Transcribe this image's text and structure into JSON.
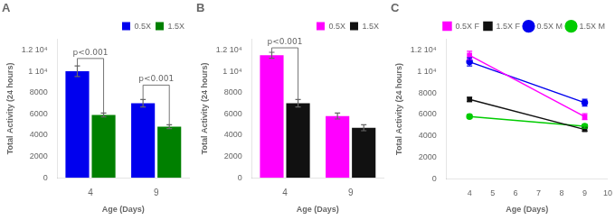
{
  "chart_data": [
    {
      "type": "bar",
      "title": "A",
      "xlabel": "Age (Days)",
      "ylabel": "Total Activity (24 hours)",
      "categories": [
        "4",
        "9"
      ],
      "series": [
        {
          "name": "0.5X",
          "color": "#0000EE",
          "values": [
            10000,
            7000
          ],
          "err": [
            500,
            350
          ]
        },
        {
          "name": "1.5X",
          "color": "#008000",
          "values": [
            5900,
            4800
          ],
          "err": [
            180,
            180
          ]
        }
      ],
      "ylim": [
        0,
        13000
      ],
      "yticks": [
        0,
        2000,
        4000,
        6000,
        8000,
        {
          "value": 10000,
          "label": "1 10⁴"
        },
        {
          "value": 12000,
          "label": "1.2 10⁴"
        }
      ],
      "annotations": [
        {
          "text": "p<0.001",
          "category": "4",
          "y": 11200
        },
        {
          "text": "p<0.001",
          "category": "9",
          "y": 8700
        }
      ],
      "legend": "upper right",
      "grid": false
    },
    {
      "type": "bar",
      "title": "B",
      "xlabel": "Age (Days)",
      "ylabel": "Total Activity (24 hours)",
      "categories": [
        "4",
        "9"
      ],
      "series": [
        {
          "name": "0.5X",
          "color": "#FF00FF",
          "values": [
            11500,
            5800
          ],
          "err": [
            280,
            280
          ]
        },
        {
          "name": "1.5X",
          "color": "#111111",
          "values": [
            7000,
            4700
          ],
          "err": [
            350,
            280
          ]
        }
      ],
      "ylim": [
        0,
        13000
      ],
      "yticks": [
        0,
        2000,
        4000,
        6000,
        8000,
        {
          "value": 10000,
          "label": "1 10⁴"
        },
        {
          "value": 12000,
          "label": "1.2 10⁴"
        }
      ],
      "annotations": [
        {
          "text": "p<0.001",
          "category": "4",
          "y": 12200
        }
      ],
      "legend": "upper right",
      "grid": false
    },
    {
      "type": "line",
      "title": "C",
      "xlabel": "Age (Days)",
      "ylabel": "Total Activity (24 hours)",
      "x": [
        4,
        9
      ],
      "series": [
        {
          "name": "0.5X F",
          "color": "#FF00FF",
          "marker": "square",
          "values": [
            11500,
            5800
          ],
          "err": [
            380,
            280
          ]
        },
        {
          "name": "1.5X F",
          "color": "#111111",
          "marker": "square",
          "values": [
            7400,
            4600
          ],
          "err": [
            200,
            150
          ]
        },
        {
          "name": "0.5X M",
          "color": "#0000EE",
          "marker": "circle",
          "values": [
            10900,
            7100
          ],
          "err": [
            380,
            320
          ]
        },
        {
          "name": "1.5X M",
          "color": "#00CC00",
          "marker": "circle",
          "values": [
            5800,
            4900
          ],
          "err": [
            180,
            180
          ]
        }
      ],
      "xlim": [
        3,
        10
      ],
      "xticks": [
        4,
        5,
        6,
        7,
        8,
        9,
        10
      ],
      "ylim": [
        0,
        13000
      ],
      "yticks": [
        0,
        2000,
        4000,
        6000,
        8000,
        {
          "value": 10000,
          "label": "1 10⁴"
        },
        {
          "value": 12000,
          "label": "1.2 10⁴"
        }
      ],
      "legend": "upper right",
      "grid": false
    }
  ]
}
